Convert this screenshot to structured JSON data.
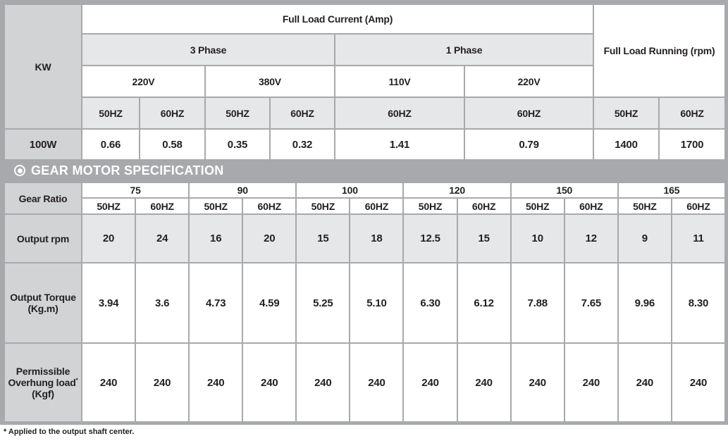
{
  "motor_table": {
    "kw_label": "KW",
    "full_load_current": "Full Load Current (Amp)",
    "full_load_running": "Full Load Running (rpm)",
    "three_phase": "3 Phase",
    "one_phase": "1 Phase",
    "voltages": [
      "220V",
      "380V",
      "110V",
      "220V"
    ],
    "freqs": [
      "50HZ",
      "60HZ",
      "50HZ",
      "60HZ",
      "60HZ",
      "60HZ",
      "50HZ",
      "60HZ"
    ],
    "row": {
      "kw": "100W",
      "values": [
        "0.66",
        "0.58",
        "0.35",
        "0.32",
        "1.41",
        "0.79",
        "1400",
        "1700"
      ]
    }
  },
  "section_title": "GEAR MOTOR SPECIFICATION",
  "gear_table": {
    "gear_ratio_label": "Gear Ratio",
    "ratios": [
      "75",
      "90",
      "100",
      "120",
      "150",
      "165"
    ],
    "freqs": [
      "50HZ",
      "60HZ",
      "50HZ",
      "60HZ",
      "50HZ",
      "60HZ",
      "50HZ",
      "60HZ",
      "50HZ",
      "60HZ",
      "50HZ",
      "60HZ"
    ],
    "output_rpm_label": "Output rpm",
    "output_rpm": [
      "20",
      "24",
      "16",
      "20",
      "15",
      "18",
      "12.5",
      "15",
      "10",
      "12",
      "9",
      "11"
    ],
    "torque_label_1": "Output Torque",
    "torque_label_2": "(Kg.m)",
    "torque": [
      "3.94",
      "3.6",
      "4.73",
      "4.59",
      "5.25",
      "5.10",
      "6.30",
      "6.12",
      "7.88",
      "7.65",
      "9.96",
      "8.30"
    ],
    "overhung_label_1": "Permissible",
    "overhung_label_2": "Overhung load",
    "overhung_mark": "*",
    "overhung_label_3": "(Kgf)",
    "overhung": [
      "240",
      "240",
      "240",
      "240",
      "240",
      "240",
      "240",
      "240",
      "240",
      "240",
      "240",
      "240"
    ]
  },
  "footnote": "* Applied to the output shaft center."
}
